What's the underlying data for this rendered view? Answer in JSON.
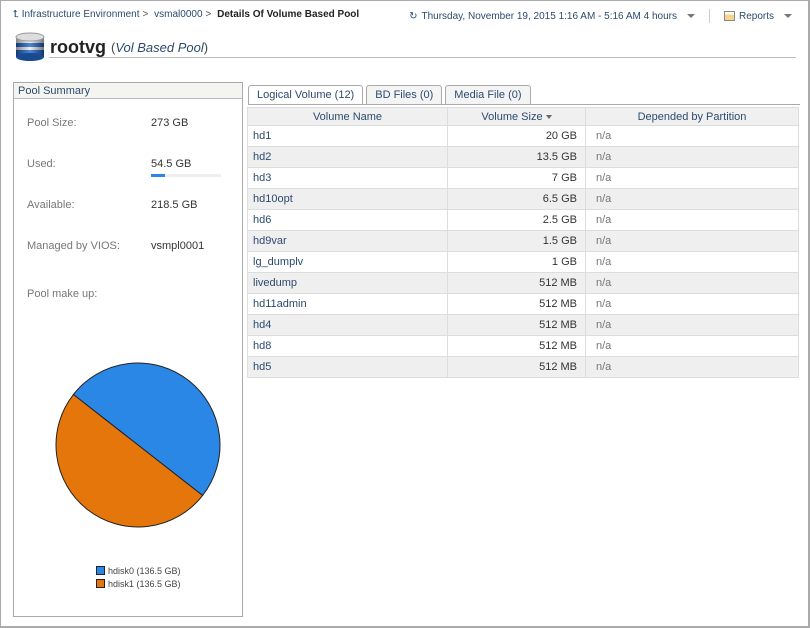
{
  "breadcrumb": [
    "Infrastructure Environment",
    "vsmal0000",
    "Details Of Volume Based Pool"
  ],
  "time_range": "Thursday, November 19, 2015 1:16 AM - 5:16 AM 4 hours",
  "reports_label": "Reports",
  "title": "rootvg",
  "subtitle": "Vol Based Pool",
  "summary": {
    "header": "Pool Summary",
    "pool_size_label": "Pool Size:",
    "pool_size": "273 GB",
    "used_label": "Used:",
    "used": "54.5 GB",
    "used_percent": 20,
    "available_label": "Available:",
    "available": "218.5 GB",
    "vios_label": "Managed by VIOS:",
    "vios": "vsmpl0001",
    "makeup_label": "Pool make up:"
  },
  "chart_data": {
    "type": "pie",
    "categories": [
      "hdisk0 (136.5 GB)",
      "hdisk1 (136.5 GB)"
    ],
    "values": [
      136.5,
      136.5
    ],
    "colors": [
      "#2b87e6",
      "#e5760c"
    ],
    "legend": "bottom"
  },
  "tabs": [
    "Logical Volume (12)",
    "BD Files (0)",
    "Media File (0)"
  ],
  "table": {
    "columns": [
      "Volume Name",
      "Volume Size",
      "Depended by Partition"
    ],
    "rows": [
      [
        "hd1",
        "20 GB",
        "n/a"
      ],
      [
        "hd2",
        "13.5 GB",
        "n/a"
      ],
      [
        "hd3",
        "7 GB",
        "n/a"
      ],
      [
        "hd10opt",
        "6.5 GB",
        "n/a"
      ],
      [
        "hd6",
        "2.5 GB",
        "n/a"
      ],
      [
        "hd9var",
        "1.5 GB",
        "n/a"
      ],
      [
        "lg_dumplv",
        "1 GB",
        "n/a"
      ],
      [
        "livedump",
        "512 MB",
        "n/a"
      ],
      [
        "hd11admin",
        "512 MB",
        "n/a"
      ],
      [
        "hd4",
        "512 MB",
        "n/a"
      ],
      [
        "hd8",
        "512 MB",
        "n/a"
      ],
      [
        "hd5",
        "512 MB",
        "n/a"
      ]
    ]
  }
}
